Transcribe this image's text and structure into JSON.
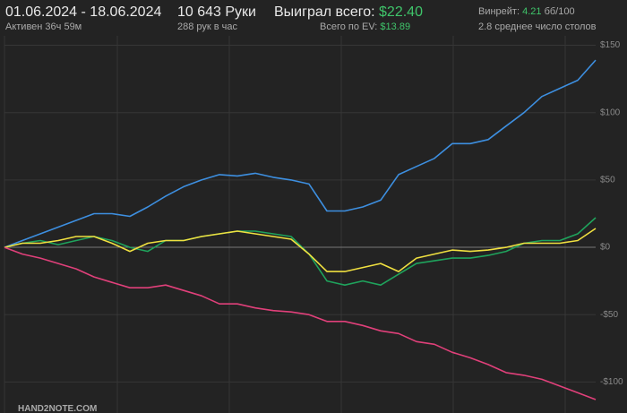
{
  "header": {
    "period": "01.06.2024 - 18.06.2024",
    "active": "Активен 36ч 59м",
    "hands": "10 643 Руки",
    "hands_per_hour": "288 рук в час",
    "won_label": "Выиграл всего:",
    "won_value": "$22.40",
    "ev_label": "Всего по EV:",
    "ev_value": "$13.89",
    "winrate_label": "Винрейт:",
    "winrate_value": "4.21",
    "winrate_unit": "бб/100",
    "tables": "2.8 среднее число столов",
    "logo": "HAND2NOTE.COM"
  },
  "chart_data": {
    "type": "line",
    "ylim": [
      -123,
      157
    ],
    "yticks": [
      {
        "value": 150,
        "label": "$150"
      },
      {
        "value": 100,
        "label": "$100"
      },
      {
        "value": 50,
        "label": "$50"
      },
      {
        "value": 0,
        "label": "$0"
      },
      {
        "value": -50,
        "label": "-$50"
      },
      {
        "value": -100,
        "label": "-$100"
      }
    ],
    "grid": true,
    "series": [
      {
        "color": "#3d8fe0",
        "values": [
          0,
          5,
          10,
          15,
          20,
          25,
          25,
          23,
          30,
          38,
          45,
          50,
          54,
          53,
          55,
          52,
          50,
          47,
          27,
          27,
          30,
          35,
          54,
          60,
          66,
          77,
          77,
          80,
          90,
          100,
          112,
          118,
          124,
          139
        ]
      },
      {
        "color": "#1fa35c",
        "values": [
          0,
          3,
          5,
          2,
          5,
          8,
          5,
          0,
          -3,
          5,
          5,
          8,
          10,
          12,
          12,
          10,
          8,
          -5,
          -25,
          -28,
          -25,
          -28,
          -20,
          -12,
          -10,
          -8,
          -8,
          -6,
          -3,
          3,
          5,
          5,
          10,
          22
        ]
      },
      {
        "color": "#f0e040",
        "values": [
          0,
          3,
          3,
          5,
          8,
          8,
          3,
          -3,
          3,
          5,
          5,
          8,
          10,
          12,
          10,
          8,
          6,
          -5,
          -18,
          -18,
          -15,
          -12,
          -18,
          -8,
          -5,
          -2,
          -3,
          -2,
          0,
          3,
          3,
          3,
          5,
          14
        ]
      },
      {
        "color": "#e0407a",
        "values": [
          0,
          -5,
          -8,
          -12,
          -16,
          -22,
          -26,
          -30,
          -30,
          -28,
          -32,
          -36,
          -42,
          -42,
          -45,
          -47,
          -48,
          -50,
          -55,
          -55,
          -58,
          -62,
          -64,
          -70,
          -72,
          -78,
          -82,
          -87,
          -93,
          -95,
          -98,
          -103,
          -108,
          -113
        ]
      }
    ]
  }
}
